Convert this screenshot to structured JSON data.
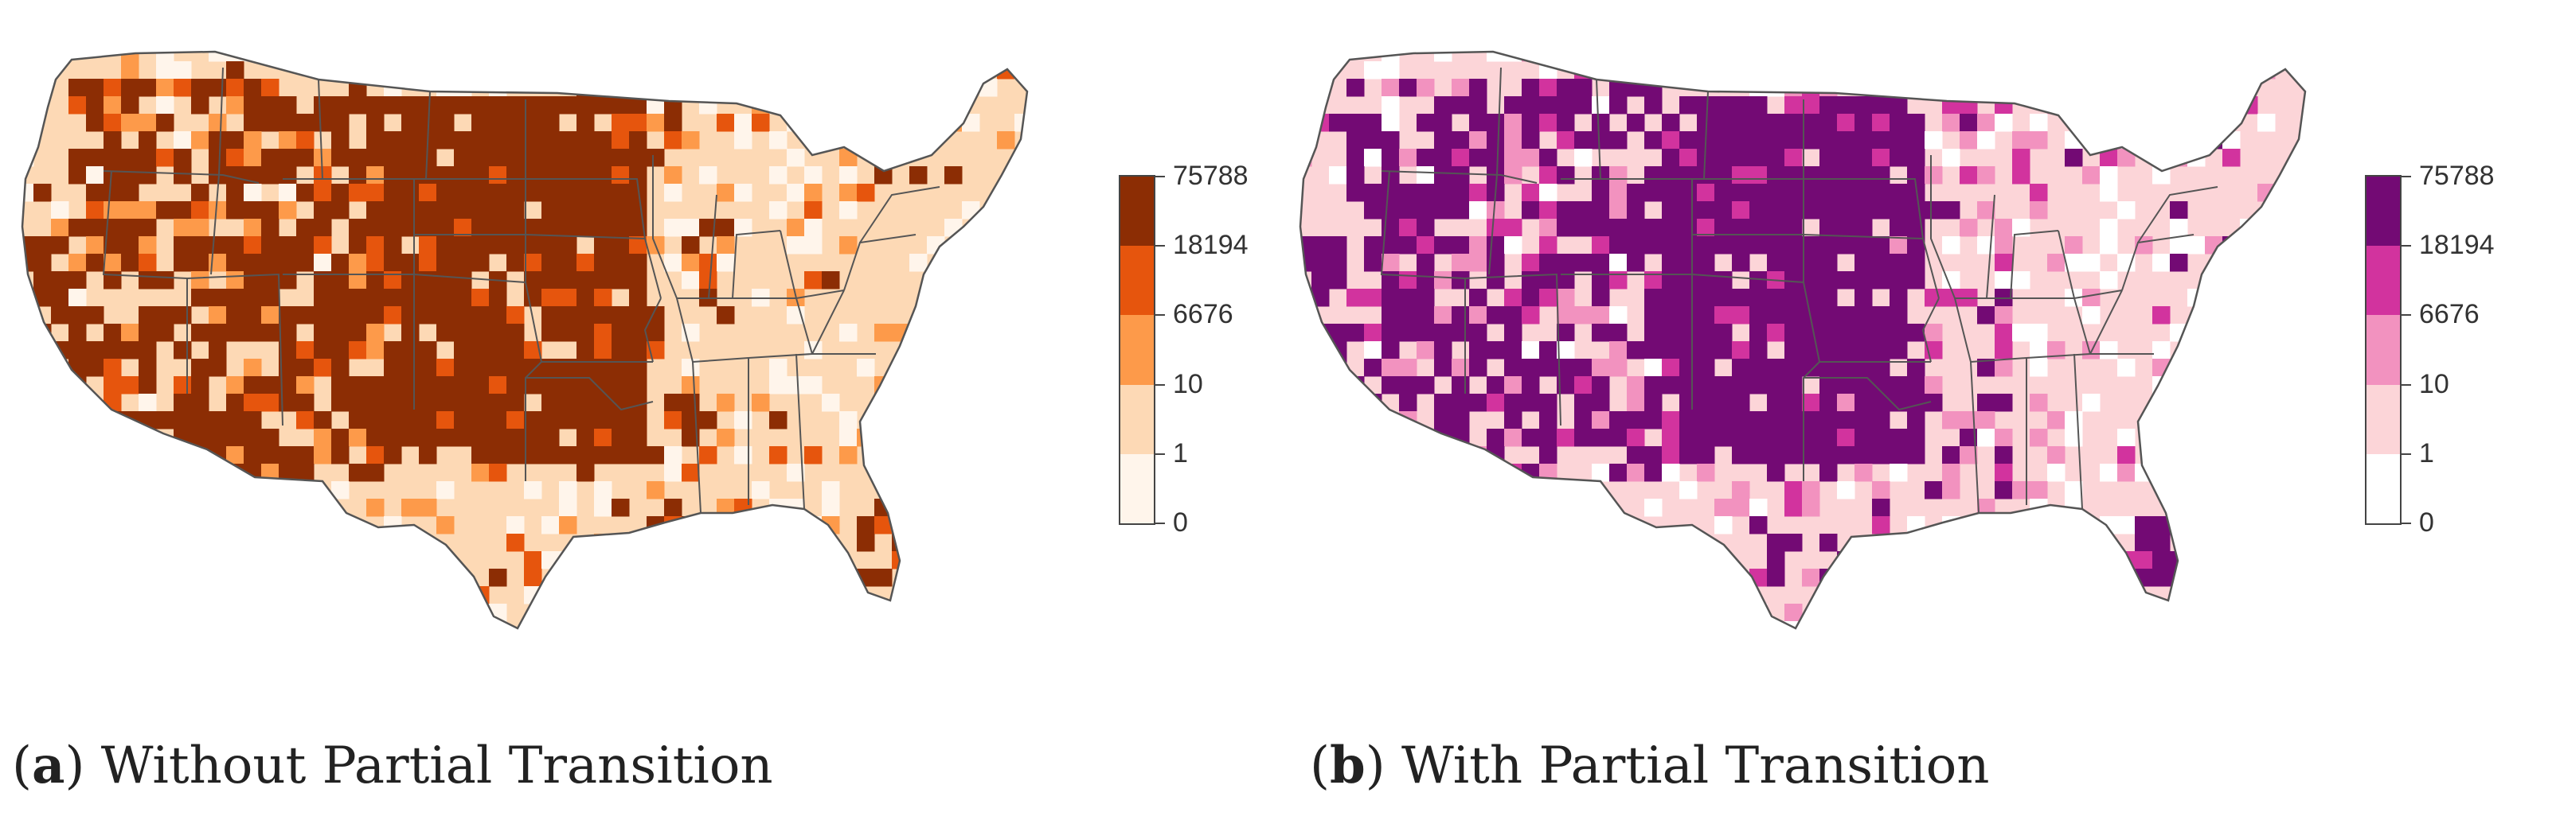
{
  "panels": [
    {
      "id": "a",
      "caption_letter": "a",
      "caption_text": "Without Partial Transition",
      "colors": [
        "#fff5eb",
        "#fdd9b5",
        "#fd9a4a",
        "#e6550d",
        "#8c2d04"
      ],
      "state_fill": "#fdd9b5"
    },
    {
      "id": "b",
      "caption_letter": "b",
      "caption_text": "With Partial Transition",
      "colors": [
        "#ffffff",
        "#fcd5d8",
        "#f292bf",
        "#d2339e",
        "#730a74"
      ],
      "state_fill": "#fcd5d8"
    }
  ],
  "legend": {
    "breaks": [
      "0",
      "1",
      "10",
      "6676",
      "18194",
      "75788"
    ]
  },
  "chart_data": [
    {
      "type": "choropleth",
      "title": "",
      "region": "Contiguous United States (counties)",
      "legend_breaks": [
        0,
        1,
        10,
        6676,
        18194,
        75788
      ],
      "legend_colors": [
        "#fff5eb",
        "#fdd9b5",
        "#fd9a4a",
        "#e6550d",
        "#8c2d04"
      ]
    },
    {
      "type": "choropleth",
      "title": "",
      "region": "Contiguous United States (counties)",
      "legend_breaks": [
        0,
        1,
        10,
        6676,
        18194,
        75788
      ],
      "legend_colors": [
        "#ffffff",
        "#fcd5d8",
        "#f292bf",
        "#d2339e",
        "#730a74"
      ]
    }
  ]
}
